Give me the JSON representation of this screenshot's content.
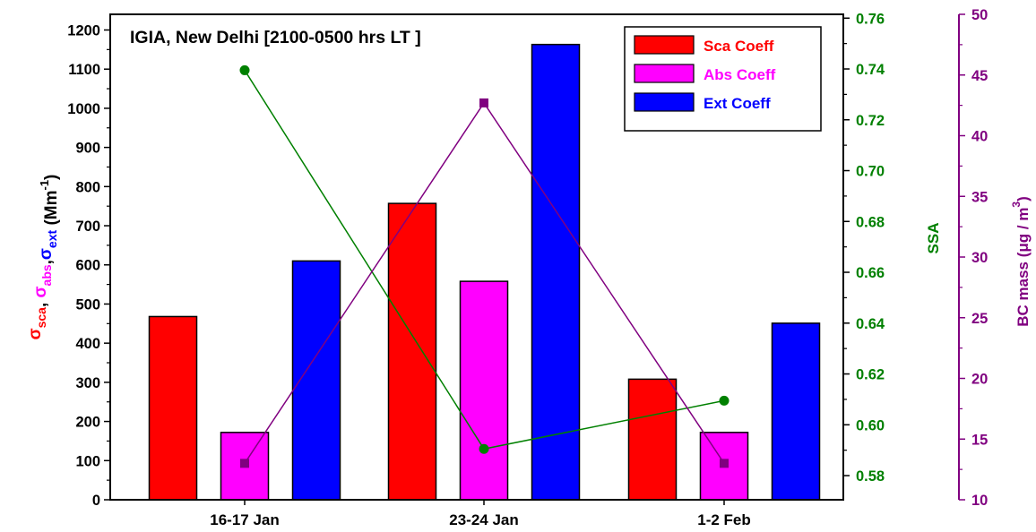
{
  "chart_data": {
    "type": "bar",
    "title": "IGIA, New Delhi [2100-0500 hrs LT ]",
    "categories": [
      "16-17 Jan",
      "23-24 Jan",
      "1-2 Feb"
    ],
    "series": [
      {
        "name": "Sca Coeff",
        "color": "#ff0000",
        "values": [
          468,
          757,
          308
        ]
      },
      {
        "name": "Abs Coeff",
        "color": "#ff00ff",
        "values": [
          172,
          558,
          172
        ]
      },
      {
        "name": "Ext Coeff",
        "color": "#0000ff",
        "values": [
          610,
          1163,
          451
        ]
      }
    ],
    "lines": [
      {
        "axis": "ssa",
        "color": "#008000",
        "marker": "circle",
        "values": [
          0.7395,
          0.5905,
          0.6095
        ]
      },
      {
        "axis": "bc",
        "color": "#800080",
        "marker": "square",
        "values": [
          13,
          42.7,
          13
        ]
      }
    ],
    "left_axis": {
      "label_parts": [
        {
          "text": "σ",
          "sub": "sca",
          "color": "#ff0000"
        },
        {
          "text": ", ",
          "color": "#000000"
        },
        {
          "text": "σ",
          "sub": "abs",
          "color": "#ff00ff"
        },
        {
          "text": ",",
          "color": "#000000"
        },
        {
          "text": "σ",
          "sub": "ext",
          "color": "#0000ff"
        },
        {
          "text": " (Mm",
          "sup": "-1",
          "suffix": ")",
          "color": "#000000"
        }
      ],
      "ticks": [
        0,
        100,
        200,
        300,
        400,
        500,
        600,
        700,
        800,
        900,
        1000,
        1100,
        1200
      ],
      "range": [
        0,
        1240
      ]
    },
    "ssa_axis": {
      "label": "SSA",
      "color": "#008000",
      "ticks": [
        "0.58",
        "0.60",
        "0.62",
        "0.64",
        "0.66",
        "0.68",
        "0.70",
        "0.72",
        "0.74",
        "0.76"
      ],
      "range": [
        0.5705,
        0.7615
      ]
    },
    "bc_axis": {
      "label": "BC mass (μg / m",
      "sup": "3",
      "suffix": ")",
      "color": "#800080",
      "ticks": [
        "10",
        "15",
        "20",
        "25",
        "30",
        "35",
        "40",
        "45",
        "50"
      ],
      "range": [
        10,
        50
      ]
    }
  }
}
